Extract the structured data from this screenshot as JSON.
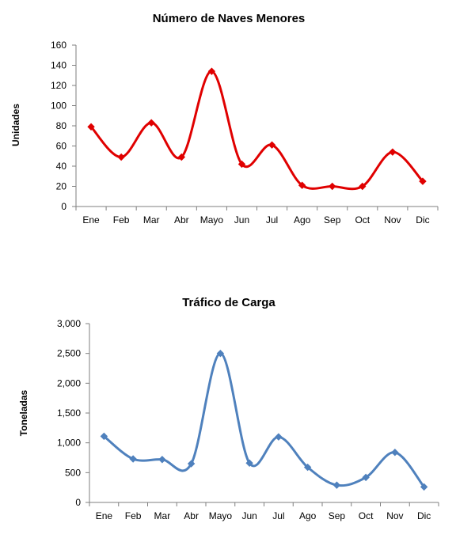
{
  "chart_data": [
    {
      "type": "line",
      "title": "Número de Naves Menores",
      "xlabel": "",
      "ylabel": "Unidades",
      "categories": [
        "Ene",
        "Feb",
        "Mar",
        "Abr",
        "Mayo",
        "Jun",
        "Jul",
        "Ago",
        "Sep",
        "Oct",
        "Nov",
        "Dic"
      ],
      "series": [
        {
          "values": [
            79,
            49,
            83,
            49,
            134,
            42,
            61,
            21,
            20,
            20,
            54,
            25
          ]
        }
      ],
      "ylim": [
        0,
        160
      ],
      "yticks": [
        0,
        20,
        40,
        60,
        80,
        100,
        120,
        140,
        160
      ],
      "ytick_labels": [
        "0",
        "20",
        "40",
        "60",
        "80",
        "100",
        "120",
        "140",
        "160"
      ],
      "color": "#e00000",
      "marker": "diamond",
      "smooth": true,
      "grid": false,
      "legend": "none"
    },
    {
      "type": "line",
      "title": "Tráfico de Carga",
      "xlabel": "",
      "ylabel": "Toneladas",
      "categories": [
        "Ene",
        "Feb",
        "Mar",
        "Abr",
        "Mayo",
        "Jun",
        "Jul",
        "Ago",
        "Sep",
        "Oct",
        "Nov",
        "Dic"
      ],
      "series": [
        {
          "values": [
            1110,
            730,
            720,
            650,
            2500,
            660,
            1100,
            590,
            290,
            420,
            840,
            260
          ]
        }
      ],
      "ylim": [
        0,
        3000
      ],
      "yticks": [
        0,
        500,
        1000,
        1500,
        2000,
        2500,
        3000
      ],
      "ytick_labels": [
        "0",
        "500",
        "1,000",
        "1,500",
        "2,000",
        "2,500",
        "3,000"
      ],
      "color": "#4f81bd",
      "marker": "diamond",
      "smooth": true,
      "grid": false,
      "legend": "none"
    }
  ]
}
